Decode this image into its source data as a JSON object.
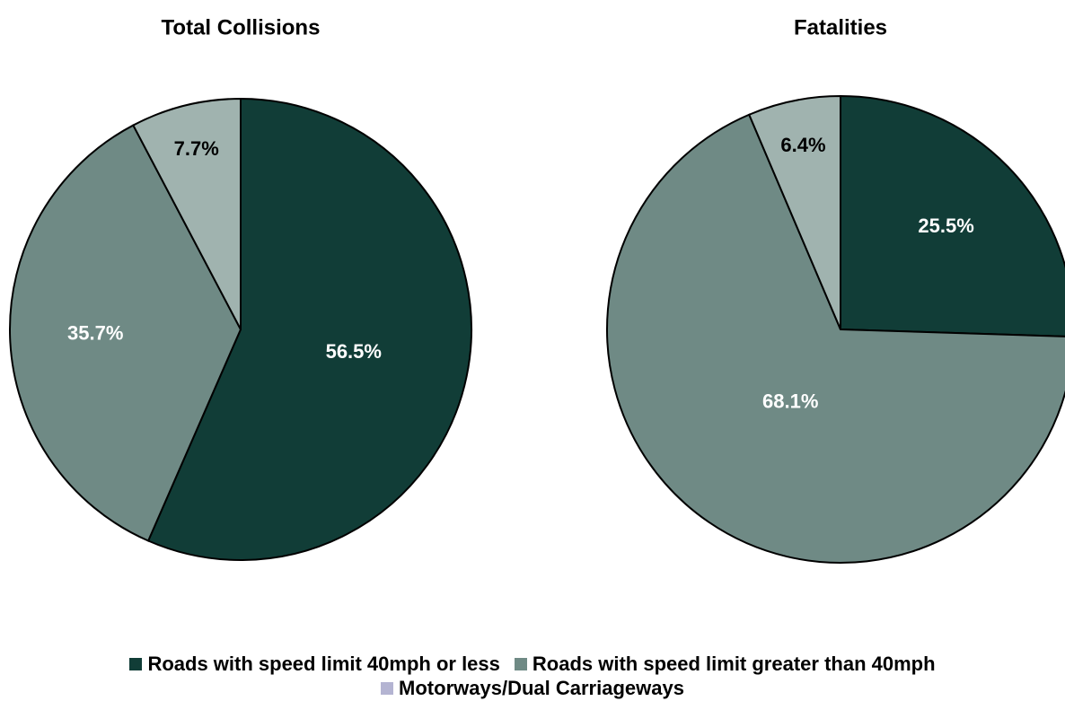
{
  "chart_data": [
    {
      "type": "pie",
      "title": "Total Collisions",
      "values": [
        56.5,
        35.7,
        7.7
      ],
      "value_labels": [
        "56.5%",
        "35.7%",
        "7.7%"
      ],
      "colors": [
        "#113d37",
        "#6f8a85",
        "#a0b3af"
      ],
      "label_colors": [
        "#ffffff",
        "#ffffff",
        "#000000"
      ]
    },
    {
      "type": "pie",
      "title": "Fatalities",
      "values": [
        25.5,
        68.1,
        6.4
      ],
      "value_labels": [
        "25.5%",
        "68.1%",
        "6.4%"
      ],
      "colors": [
        "#113d37",
        "#6f8a85",
        "#a0b3af"
      ],
      "label_colors": [
        "#ffffff",
        "#ffffff",
        "#000000"
      ]
    }
  ],
  "legend": {
    "items": [
      {
        "name": "Roads with speed limit 40mph or less",
        "color": "#113d37"
      },
      {
        "name": "Roads with speed limit greater than 40mph",
        "color": "#6f8a85"
      },
      {
        "name": "Motorways/Dual Carriageways",
        "color": "#b4b4d2"
      }
    ]
  }
}
